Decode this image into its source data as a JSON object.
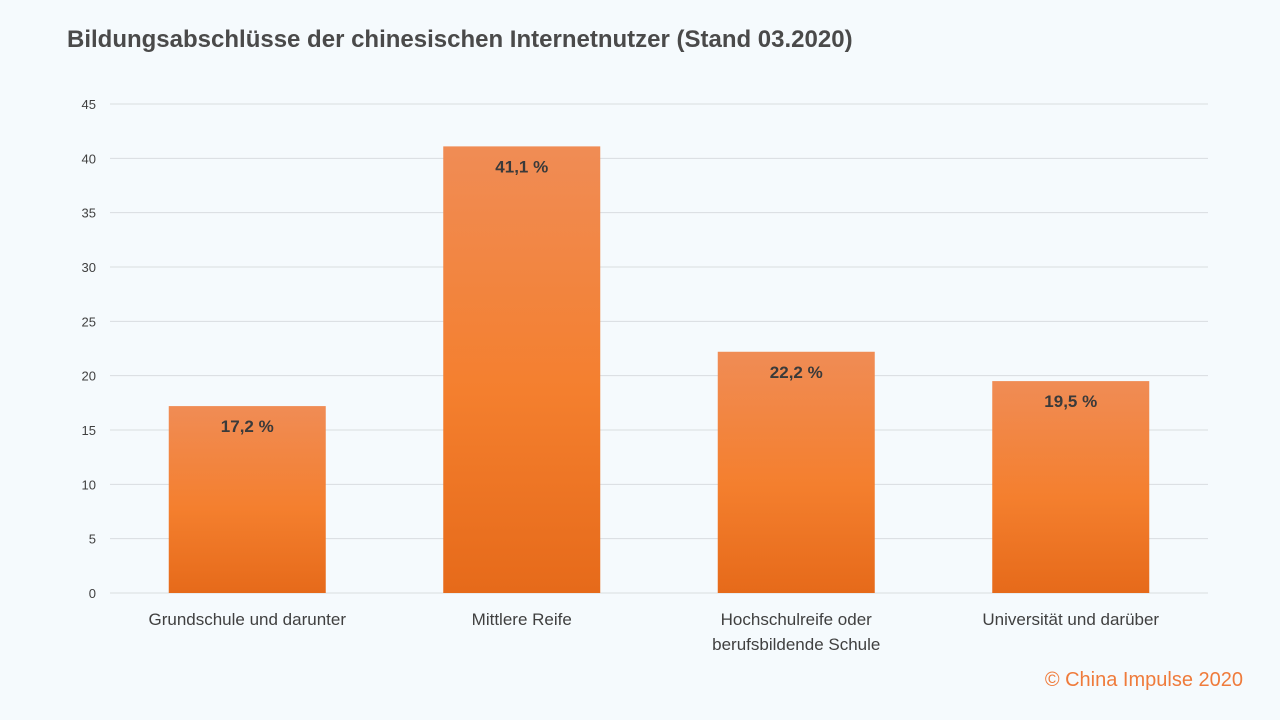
{
  "title": "Bildungsabschlüsse der chinesischen Internetnutzer (Stand 03.2020)",
  "copyright": "© China Impulse 2020",
  "colors": {
    "bar_top": "#f08c55",
    "bar_mid": "#f47f2e",
    "bar_bottom": "#e66a1a",
    "grid": "#d9dde0"
  },
  "chart_data": {
    "type": "bar",
    "title": "Bildungsabschlüsse der chinesischen Internetnutzer (Stand 03.2020)",
    "categories": [
      [
        "Grundschule und darunter"
      ],
      [
        "Mittlere Reife"
      ],
      [
        "Hochschulreife oder",
        "berufsbildende Schule"
      ],
      [
        "Universität und darüber"
      ]
    ],
    "values": [
      17.2,
      41.1,
      22.2,
      19.5
    ],
    "data_labels": [
      "17,2 %",
      "41,1 %",
      "22,2 %",
      "19,5 %"
    ],
    "ylim": [
      0,
      45
    ],
    "yticks": [
      0,
      5,
      10,
      15,
      20,
      25,
      30,
      35,
      40,
      45
    ],
    "grid": true,
    "legend": "none"
  }
}
